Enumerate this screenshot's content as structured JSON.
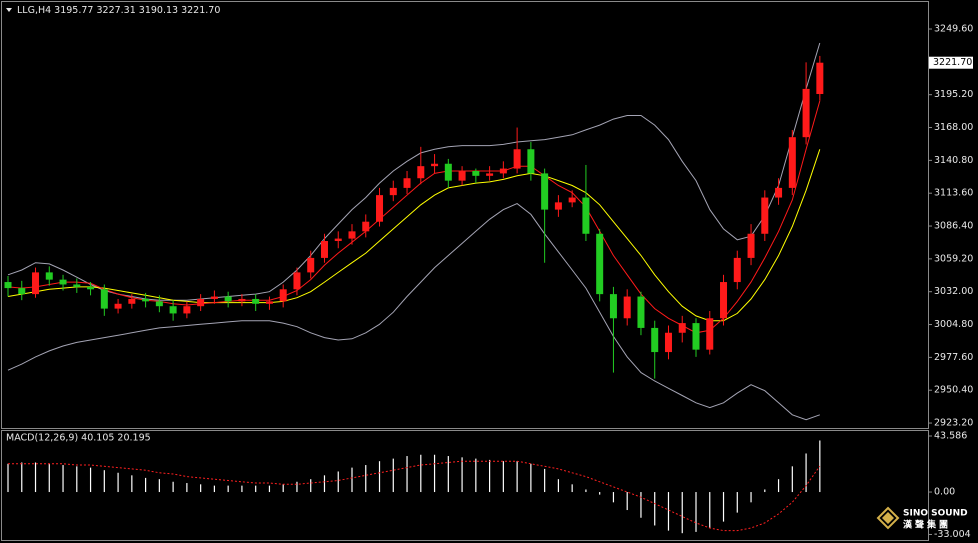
{
  "chart_data": [
    {
      "type": "candlestick",
      "header": "LLG,H4  3195.77 3227.31 3190.13 3221.70",
      "up_color": "#ff1a1a",
      "down_color": "#22cc22",
      "open": [
        3040,
        3035,
        3030,
        3048,
        3042,
        3038,
        3036,
        3034,
        3018,
        3022,
        3026,
        3024,
        3020,
        3014,
        3020,
        3026,
        3028,
        3024,
        3026,
        3022,
        3024,
        3034,
        3048,
        3060,
        3074,
        3076,
        3082,
        3090,
        3112,
        3118,
        3126,
        3136,
        3138,
        3124,
        3132,
        3128,
        3130,
        3134,
        3150,
        3130,
        3100,
        3106,
        3110,
        3080,
        3030,
        3010,
        3028,
        3002,
        2982,
        2998,
        3006,
        2984,
        3010,
        3040,
        3060,
        3080,
        3110,
        3118,
        3160,
        3195.77
      ],
      "high": [
        3045,
        3041,
        3052,
        3053,
        3046,
        3043,
        3040,
        3038,
        3026,
        3030,
        3031,
        3029,
        3025,
        3024,
        3030,
        3033,
        3032,
        3030,
        3030,
        3028,
        3038,
        3052,
        3066,
        3080,
        3082,
        3088,
        3096,
        3118,
        3124,
        3132,
        3152,
        3146,
        3142,
        3136,
        3134,
        3136,
        3140,
        3168,
        3156,
        3134,
        3112,
        3116,
        3137,
        3084,
        3036,
        3034,
        3032,
        3008,
        3004,
        3012,
        3010,
        3016,
        3046,
        3066,
        3088,
        3116,
        3126,
        3166,
        3222,
        3227.31
      ],
      "low": [
        3028,
        3025,
        3027,
        3037,
        3033,
        3031,
        3029,
        3012,
        3014,
        3018,
        3019,
        3015,
        3008,
        3010,
        3016,
        3022,
        3019,
        3020,
        3016,
        3017,
        3019,
        3029,
        3043,
        3056,
        3068,
        3071,
        3077,
        3086,
        3107,
        3113,
        3121,
        3130,
        3118,
        3120,
        3122,
        3124,
        3126,
        3130,
        3124,
        3056,
        3094,
        3102,
        3074,
        3024,
        2965,
        3004,
        2996,
        2960,
        2976,
        2990,
        2978,
        2980,
        3004,
        3034,
        3054,
        3074,
        3104,
        3112,
        3154,
        3190.13
      ],
      "close": [
        3035,
        3030,
        3048,
        3042,
        3038,
        3036,
        3034,
        3018,
        3022,
        3026,
        3024,
        3020,
        3014,
        3020,
        3026,
        3028,
        3024,
        3026,
        3022,
        3024,
        3034,
        3048,
        3060,
        3074,
        3076,
        3082,
        3090,
        3112,
        3118,
        3126,
        3136,
        3138,
        3124,
        3132,
        3128,
        3130,
        3134,
        3150,
        3130,
        3100,
        3106,
        3110,
        3080,
        3030,
        3010,
        3028,
        3002,
        2982,
        2998,
        3006,
        2984,
        3010,
        3040,
        3060,
        3080,
        3110,
        3118,
        3160,
        3200,
        3221.7
      ],
      "series": [
        {
          "color": "#a4a4b4",
          "values": [
            3046,
            3050,
            3056,
            3055,
            3050,
            3044,
            3038,
            3033,
            3030,
            3028,
            3026,
            3025,
            3025,
            3025,
            3026,
            3027,
            3028,
            3029,
            3030,
            3032,
            3040,
            3050,
            3062,
            3076,
            3088,
            3100,
            3110,
            3122,
            3132,
            3140,
            3147,
            3150,
            3152,
            3153,
            3153,
            3153,
            3154,
            3156,
            3157,
            3158,
            3160,
            3162,
            3166,
            3170,
            3175,
            3178,
            3178,
            3170,
            3158,
            3140,
            3124,
            3100,
            3084,
            3075,
            3078,
            3095,
            3120,
            3160,
            3200,
            3238
          ]
        },
        {
          "color": "#a4a4b4",
          "values": [
            2967,
            2972,
            2978,
            2983,
            2987,
            2990,
            2992,
            2994,
            2996,
            2998,
            3000,
            3002,
            3003,
            3004,
            3005,
            3006,
            3007,
            3008,
            3008,
            3008,
            3006,
            3003,
            2998,
            2994,
            2992,
            2993,
            2998,
            3005,
            3015,
            3028,
            3040,
            3052,
            3062,
            3072,
            3082,
            3092,
            3100,
            3105,
            3096,
            3080,
            3065,
            3050,
            3035,
            3015,
            2995,
            2978,
            2965,
            2958,
            2952,
            2946,
            2940,
            2936,
            2940,
            2948,
            2955,
            2950,
            2940,
            2930,
            2926,
            2930
          ]
        },
        {
          "color": "#ffff00",
          "values": [
            3028,
            3030,
            3032,
            3034,
            3035,
            3036,
            3036,
            3035,
            3033,
            3031,
            3029,
            3027,
            3025,
            3024,
            3023,
            3023,
            3023,
            3023,
            3023,
            3023,
            3024,
            3027,
            3032,
            3040,
            3048,
            3056,
            3064,
            3074,
            3084,
            3094,
            3104,
            3112,
            3118,
            3120,
            3122,
            3123,
            3125,
            3128,
            3130,
            3128,
            3124,
            3120,
            3114,
            3104,
            3090,
            3076,
            3062,
            3046,
            3032,
            3020,
            3012,
            3008,
            3008,
            3014,
            3026,
            3042,
            3062,
            3086,
            3116,
            3150
          ]
        },
        {
          "color": "#ff1a1a",
          "values": [
            3036,
            3035,
            3036,
            3038,
            3040,
            3040,
            3039,
            3034,
            3030,
            3027,
            3025,
            3024,
            3022,
            3021,
            3022,
            3023,
            3024,
            3025,
            3025,
            3025,
            3028,
            3033,
            3042,
            3054,
            3064,
            3073,
            3082,
            3092,
            3102,
            3112,
            3122,
            3130,
            3132,
            3132,
            3132,
            3132,
            3132,
            3136,
            3136,
            3128,
            3120,
            3114,
            3102,
            3082,
            3062,
            3046,
            3030,
            3018,
            3010,
            3004,
            2998,
            3000,
            3010,
            3024,
            3040,
            3060,
            3082,
            3108,
            3150,
            3190
          ]
        }
      ],
      "ylim": [
        2919.1,
        3269.5
      ],
      "yticks": [
        {
          "value": 3249.6,
          "label": "3249.60"
        },
        {
          "value": 3195.2,
          "label": "3195.20"
        },
        {
          "value": 3168,
          "label": "3168.00"
        },
        {
          "value": 3140.8,
          "label": "3140.80"
        },
        {
          "value": 3113.6,
          "label": "3113.60"
        },
        {
          "value": 3086.4,
          "label": "3086.40"
        },
        {
          "value": 3059.2,
          "label": "3059.20"
        },
        {
          "value": 3032,
          "label": "3032.00"
        },
        {
          "value": 3004.8,
          "label": "3004.80"
        },
        {
          "value": 2977.6,
          "label": "2977.60"
        },
        {
          "value": 2950.4,
          "label": "2950.40"
        },
        {
          "value": 2923.2,
          "label": "2923.20"
        }
      ],
      "price_marker": {
        "value": 3221.7,
        "label": "3221.70"
      }
    },
    {
      "type": "macd",
      "title": "MACD(12,26,9) 40.105 20.195",
      "histogram_color": "#ffffff",
      "signal_color": "#ff2020",
      "values": [
        22,
        23,
        23,
        22,
        21,
        20,
        19,
        17,
        15,
        13,
        11,
        10,
        8,
        7,
        6,
        5,
        5,
        5,
        5,
        5,
        6,
        8,
        10,
        13,
        16,
        19,
        21,
        24,
        26,
        28,
        29,
        29,
        28,
        27,
        26,
        25,
        24,
        24,
        22,
        18,
        10,
        6,
        2,
        -2,
        -8,
        -14,
        -20,
        -26,
        -30,
        -32,
        -31,
        -28,
        -23,
        -16,
        -8,
        2,
        10,
        20,
        30,
        40.105
      ],
      "signal": [
        22,
        22,
        22,
        22,
        22,
        21,
        21,
        20,
        19,
        18,
        17,
        15,
        14,
        12,
        11,
        10,
        9,
        8,
        7,
        7,
        6,
        6,
        7,
        8,
        9,
        11,
        13,
        15,
        17,
        19,
        21,
        22,
        23,
        24,
        24,
        24,
        24,
        24,
        22,
        20,
        18,
        15,
        12,
        8,
        4,
        0,
        -4,
        -9,
        -14,
        -19,
        -24,
        -28,
        -30,
        -30,
        -28,
        -24,
        -17,
        -8,
        5,
        20.195
      ],
      "ylim": [
        -37.3,
        46.7
      ],
      "yticks": [
        43.586,
        {
          "value": 0,
          "label": "0.00"
        },
        -33.004
      ]
    }
  ],
  "watermark": {
    "en": "SINO SOUND",
    "zh": "漢聲集團"
  }
}
